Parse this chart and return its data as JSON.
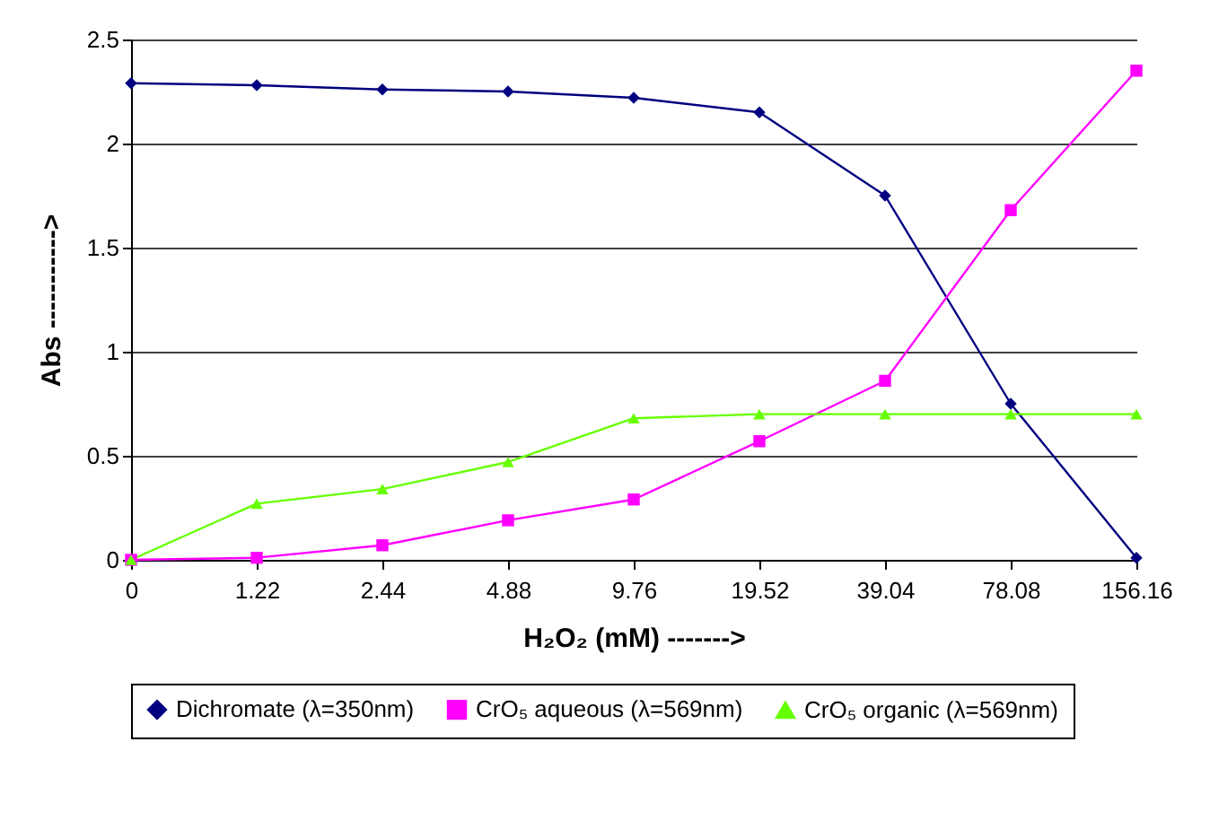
{
  "chart_data": {
    "type": "line",
    "xlabel": "H₂O₂ (mM) ------->",
    "ylabel": "Abs ----------->",
    "categories": [
      "0",
      "1.22",
      "2.44",
      "4.88",
      "9.76",
      "19.52",
      "39.04",
      "78.08",
      "156.16"
    ],
    "ylim": [
      0,
      2.5
    ],
    "yticks": [
      0,
      0.5,
      1,
      1.5,
      2,
      2.5
    ],
    "grid": "y",
    "legend": "bottom",
    "series": [
      {
        "name": "Dichromate (λ=350nm)",
        "color": "#000080",
        "marker": "diamond",
        "values": [
          2.29,
          2.28,
          2.26,
          2.25,
          2.22,
          2.15,
          1.75,
          0.75,
          0.01
        ]
      },
      {
        "name": "CrO₅ aqueous (λ=569nm)",
        "color": "#ff00ff",
        "marker": "square",
        "values": [
          0,
          0.01,
          0.07,
          0.19,
          0.29,
          0.57,
          0.86,
          1.68,
          2.35
        ]
      },
      {
        "name": "CrO₅ organic (λ=569nm)",
        "color": "#66ff00",
        "marker": "triangle",
        "values": [
          0,
          0.27,
          0.34,
          0.47,
          0.68,
          0.7,
          0.7,
          0.7,
          0.7
        ]
      }
    ]
  }
}
